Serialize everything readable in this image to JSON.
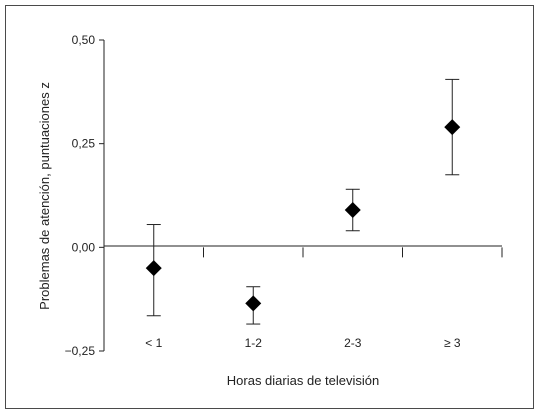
{
  "chart_data": {
    "type": "scatter",
    "xlabel": "Horas diarias de televisión",
    "ylabel": "Problemas de atención, puntuaciones z",
    "ylim": [
      -0.25,
      0.5
    ],
    "y_ticks": [
      "0,50",
      "0,25",
      "0,00",
      "−0,25"
    ],
    "y_tick_values": [
      0.5,
      0.25,
      0.0,
      -0.25
    ],
    "categories": [
      "< 1",
      "1-2",
      "2-3",
      "≥ 3"
    ],
    "values": [
      -0.05,
      -0.135,
      0.09,
      0.29
    ],
    "error_low": [
      -0.165,
      -0.185,
      0.04,
      0.175
    ],
    "error_high": [
      0.055,
      -0.095,
      0.14,
      0.405
    ],
    "marker": "diamond",
    "marker_color": "#000000",
    "grid": false,
    "legend": "none"
  }
}
